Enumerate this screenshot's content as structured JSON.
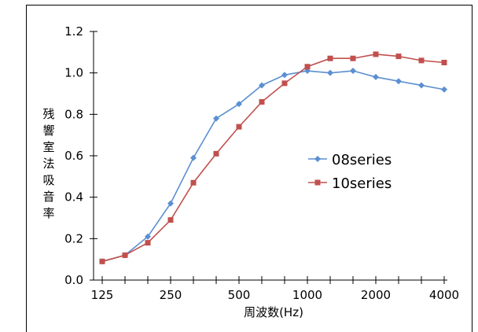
{
  "chart_data": {
    "type": "line",
    "title": "",
    "xlabel": "周波数(Hz)",
    "ylabel": "残響室法吸音率",
    "ylim": [
      0.0,
      1.2
    ],
    "yticks": [
      "0.0",
      "0.2",
      "0.4",
      "0.6",
      "0.8",
      "1.0",
      "1.2"
    ],
    "xtick_labels": [
      "125",
      "250",
      "500",
      "1000",
      "2000",
      "4000"
    ],
    "x": [
      "125",
      "160",
      "200",
      "250",
      "315",
      "400",
      "500",
      "630",
      "800",
      "1000",
      "1250",
      "1600",
      "2000",
      "2500",
      "3150",
      "4000"
    ],
    "grid": false,
    "legend_position": "center-right",
    "series": [
      {
        "name": "08series",
        "color": "#5b8fd1",
        "marker": "diamond",
        "values": [
          0.09,
          0.12,
          0.21,
          0.37,
          0.59,
          0.78,
          0.85,
          0.94,
          0.99,
          1.01,
          1.0,
          1.01,
          0.98,
          0.96,
          0.94,
          0.92
        ]
      },
      {
        "name": "10series",
        "color": "#c0504d",
        "marker": "square",
        "values": [
          0.09,
          0.12,
          0.18,
          0.29,
          0.47,
          0.61,
          0.74,
          0.86,
          0.95,
          1.03,
          1.07,
          1.07,
          1.09,
          1.08,
          1.06,
          1.05
        ]
      }
    ]
  }
}
